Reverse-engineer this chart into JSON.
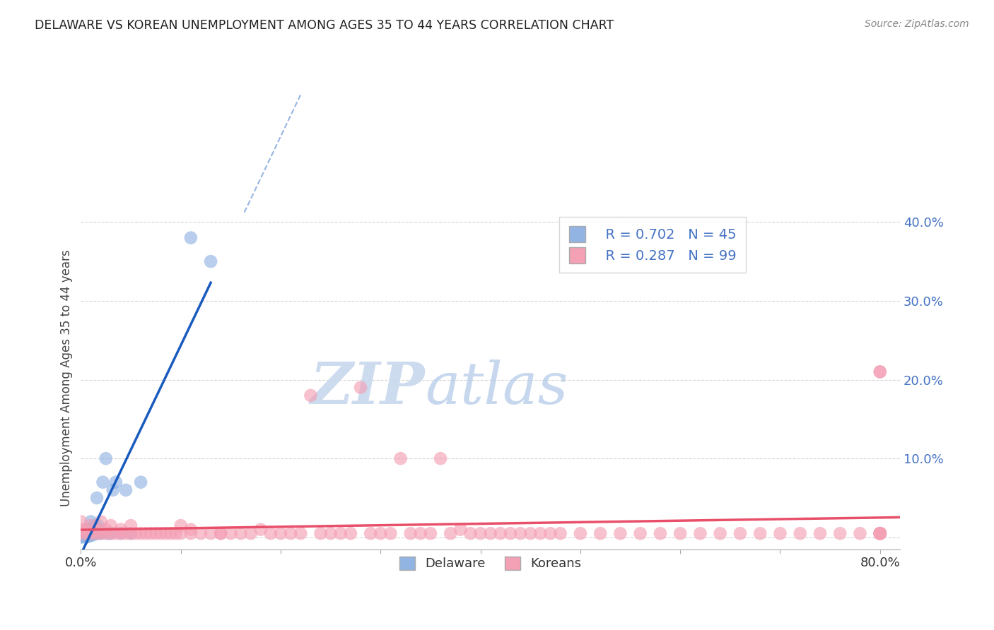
{
  "title": "DELAWARE VS KOREAN UNEMPLOYMENT AMONG AGES 35 TO 44 YEARS CORRELATION CHART",
  "source": "Source: ZipAtlas.com",
  "ylabel": "Unemployment Among Ages 35 to 44 years",
  "xlim": [
    0.0,
    0.82
  ],
  "ylim": [
    -0.015,
    0.42
  ],
  "yticks": [
    0.0,
    0.1,
    0.2,
    0.3,
    0.4
  ],
  "ytick_labels": [
    "",
    "10.0%",
    "20.0%",
    "30.0%",
    "40.0%"
  ],
  "xtick_positions": [
    0.0,
    0.1,
    0.2,
    0.3,
    0.4,
    0.5,
    0.6,
    0.7,
    0.8
  ],
  "legend_r_delaware": "R = 0.702",
  "legend_n_delaware": "N = 45",
  "legend_r_koreans": "R = 0.287",
  "legend_n_koreans": "N = 99",
  "delaware_color": "#92b4e3",
  "koreans_color": "#f4a0b5",
  "trendline_delaware_color": "#1a5bbf",
  "trendline_koreans_color": "#e8506a",
  "watermark_color": "#d0dff0",
  "background_color": "#ffffff",
  "delaware_x": [
    0.0,
    0.0,
    0.001,
    0.002,
    0.003,
    0.003,
    0.004,
    0.004,
    0.005,
    0.005,
    0.005,
    0.006,
    0.006,
    0.007,
    0.007,
    0.008,
    0.008,
    0.009,
    0.009,
    0.01,
    0.01,
    0.011,
    0.012,
    0.012,
    0.013,
    0.014,
    0.015,
    0.015,
    0.016,
    0.017,
    0.018,
    0.019,
    0.02,
    0.022,
    0.025,
    0.027,
    0.03,
    0.032,
    0.035,
    0.04,
    0.045,
    0.05,
    0.06,
    0.11,
    0.13
  ],
  "delaware_y": [
    0.0,
    0.005,
    0.002,
    0.003,
    0.001,
    0.005,
    0.002,
    0.004,
    0.0,
    0.005,
    0.01,
    0.002,
    0.006,
    0.001,
    0.007,
    0.003,
    0.008,
    0.002,
    0.005,
    0.01,
    0.02,
    0.005,
    0.003,
    0.01,
    0.005,
    0.015,
    0.005,
    0.01,
    0.05,
    0.015,
    0.005,
    0.01,
    0.005,
    0.07,
    0.1,
    0.005,
    0.005,
    0.06,
    0.07,
    0.005,
    0.06,
    0.005,
    0.07,
    0.38,
    0.35
  ],
  "koreans_x": [
    0.0,
    0.0,
    0.0,
    0.005,
    0.005,
    0.01,
    0.01,
    0.015,
    0.015,
    0.02,
    0.02,
    0.025,
    0.025,
    0.03,
    0.03,
    0.035,
    0.04,
    0.04,
    0.045,
    0.05,
    0.05,
    0.055,
    0.06,
    0.065,
    0.07,
    0.075,
    0.08,
    0.085,
    0.09,
    0.095,
    0.1,
    0.1,
    0.11,
    0.11,
    0.12,
    0.13,
    0.14,
    0.14,
    0.15,
    0.16,
    0.17,
    0.18,
    0.19,
    0.2,
    0.21,
    0.22,
    0.23,
    0.24,
    0.25,
    0.26,
    0.27,
    0.28,
    0.29,
    0.3,
    0.31,
    0.32,
    0.33,
    0.34,
    0.35,
    0.36,
    0.37,
    0.38,
    0.39,
    0.4,
    0.41,
    0.42,
    0.43,
    0.44,
    0.45,
    0.46,
    0.47,
    0.48,
    0.5,
    0.52,
    0.54,
    0.56,
    0.58,
    0.6,
    0.62,
    0.64,
    0.66,
    0.68,
    0.7,
    0.72,
    0.74,
    0.76,
    0.78,
    0.8,
    0.8,
    0.8,
    0.8,
    0.8,
    0.8,
    0.8,
    0.8,
    0.8,
    0.8,
    0.8,
    0.8
  ],
  "koreans_y": [
    0.005,
    0.01,
    0.02,
    0.005,
    0.01,
    0.005,
    0.015,
    0.005,
    0.01,
    0.005,
    0.02,
    0.005,
    0.01,
    0.005,
    0.015,
    0.005,
    0.005,
    0.01,
    0.005,
    0.005,
    0.015,
    0.005,
    0.005,
    0.005,
    0.005,
    0.005,
    0.005,
    0.005,
    0.005,
    0.005,
    0.005,
    0.015,
    0.005,
    0.01,
    0.005,
    0.005,
    0.005,
    0.005,
    0.005,
    0.005,
    0.005,
    0.01,
    0.005,
    0.005,
    0.005,
    0.005,
    0.18,
    0.005,
    0.005,
    0.005,
    0.005,
    0.19,
    0.005,
    0.005,
    0.005,
    0.1,
    0.005,
    0.005,
    0.005,
    0.1,
    0.005,
    0.01,
    0.005,
    0.005,
    0.005,
    0.005,
    0.005,
    0.005,
    0.005,
    0.005,
    0.005,
    0.005,
    0.005,
    0.005,
    0.005,
    0.005,
    0.005,
    0.005,
    0.005,
    0.005,
    0.005,
    0.005,
    0.005,
    0.005,
    0.005,
    0.005,
    0.005,
    0.21,
    0.21,
    0.005,
    0.005,
    0.005,
    0.005,
    0.005,
    0.005,
    0.005,
    0.005,
    0.005,
    0.005
  ]
}
